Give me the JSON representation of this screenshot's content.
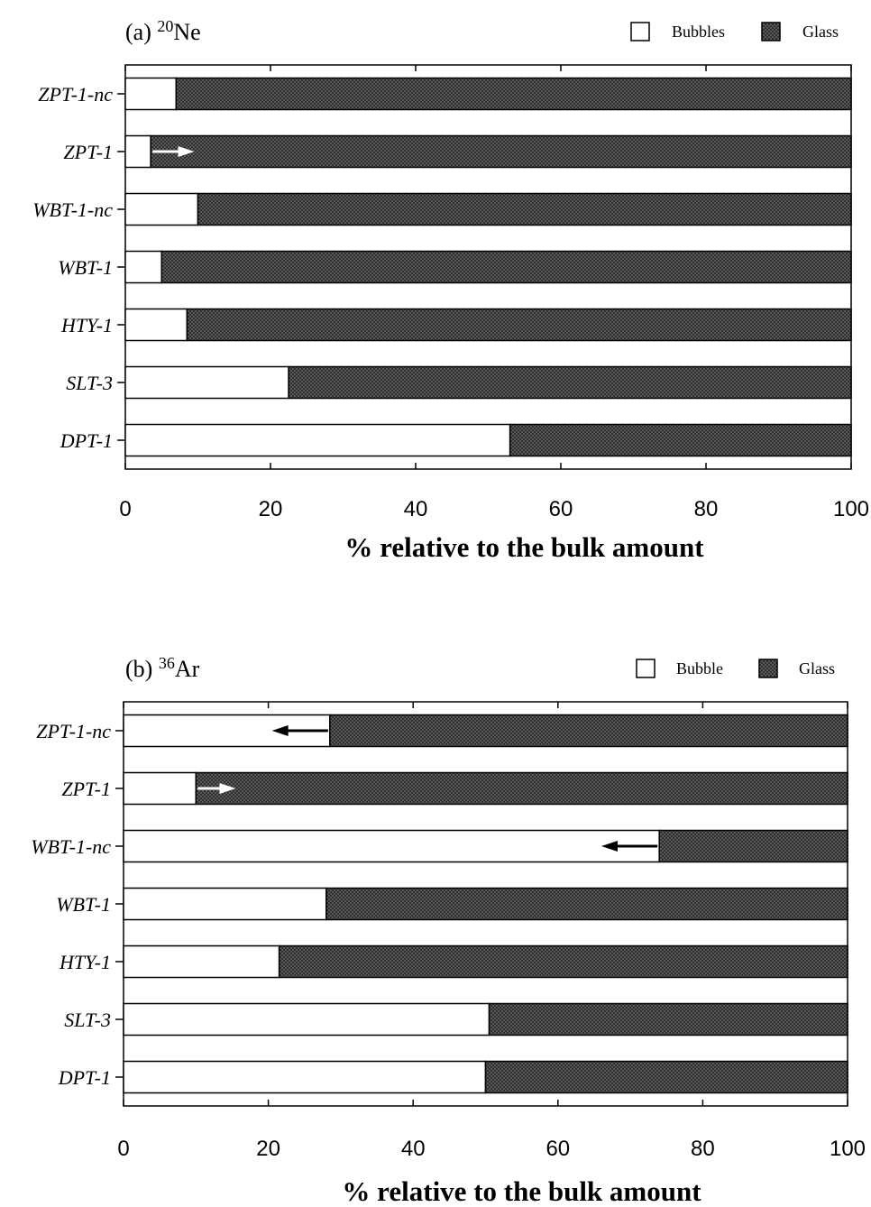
{
  "chart_data": [
    {
      "type": "bar",
      "stacked": true,
      "orientation": "horizontal",
      "panel_label": "(a)",
      "isotope_mass": "20",
      "isotope_symbol": "Ne",
      "categories": [
        "ZPT-1-nc",
        "ZPT-1",
        "WBT-1-nc",
        "WBT-1",
        "HTY-1",
        "SLT-3",
        "DPT-1"
      ],
      "series": [
        {
          "name": "Bubbles",
          "values": [
            7,
            3.5,
            10,
            5,
            8.5,
            22.5,
            53
          ],
          "fill": "#ffffff"
        },
        {
          "name": "Glass",
          "values": [
            93,
            96.5,
            90,
            95,
            91.5,
            77.5,
            47
          ],
          "fill": "#3a3a3a"
        }
      ],
      "arrows": [
        {
          "category": "ZPT-1",
          "from": 3.5,
          "to": 9.5,
          "color": "#ffffff"
        }
      ],
      "xlabel": "% relative to the bulk amount",
      "xlim": [
        0,
        100
      ],
      "xticks": [
        "0",
        "20",
        "40",
        "60",
        "80",
        "100"
      ],
      "legend_position": "top-right"
    },
    {
      "type": "bar",
      "stacked": true,
      "orientation": "horizontal",
      "panel_label": "(b)",
      "isotope_mass": "36",
      "isotope_symbol": "Ar",
      "categories": [
        "ZPT-1-nc",
        "ZPT-1",
        "WBT-1-nc",
        "WBT-1",
        "HTY-1",
        "SLT-3",
        "DPT-1"
      ],
      "series": [
        {
          "name": "Bubble",
          "values": [
            28.5,
            10,
            74,
            28,
            21.5,
            50.5,
            50
          ],
          "fill": "#ffffff"
        },
        {
          "name": "Glass",
          "values": [
            71.5,
            90,
            26,
            72,
            78.5,
            49.5,
            50
          ],
          "fill": "#3a3a3a"
        }
      ],
      "arrows": [
        {
          "category": "ZPT-1-nc",
          "from": 28.5,
          "to": 20.5,
          "color": "#000000"
        },
        {
          "category": "ZPT-1",
          "from": 10,
          "to": 15.5,
          "color": "#ffffff"
        },
        {
          "category": "WBT-1-nc",
          "from": 74,
          "to": 66,
          "color": "#000000"
        }
      ],
      "xlabel": "% relative to the bulk amount",
      "xlim": [
        0,
        100
      ],
      "xticks": [
        "0",
        "20",
        "40",
        "60",
        "80",
        "100"
      ],
      "legend_position": "top-right"
    }
  ]
}
